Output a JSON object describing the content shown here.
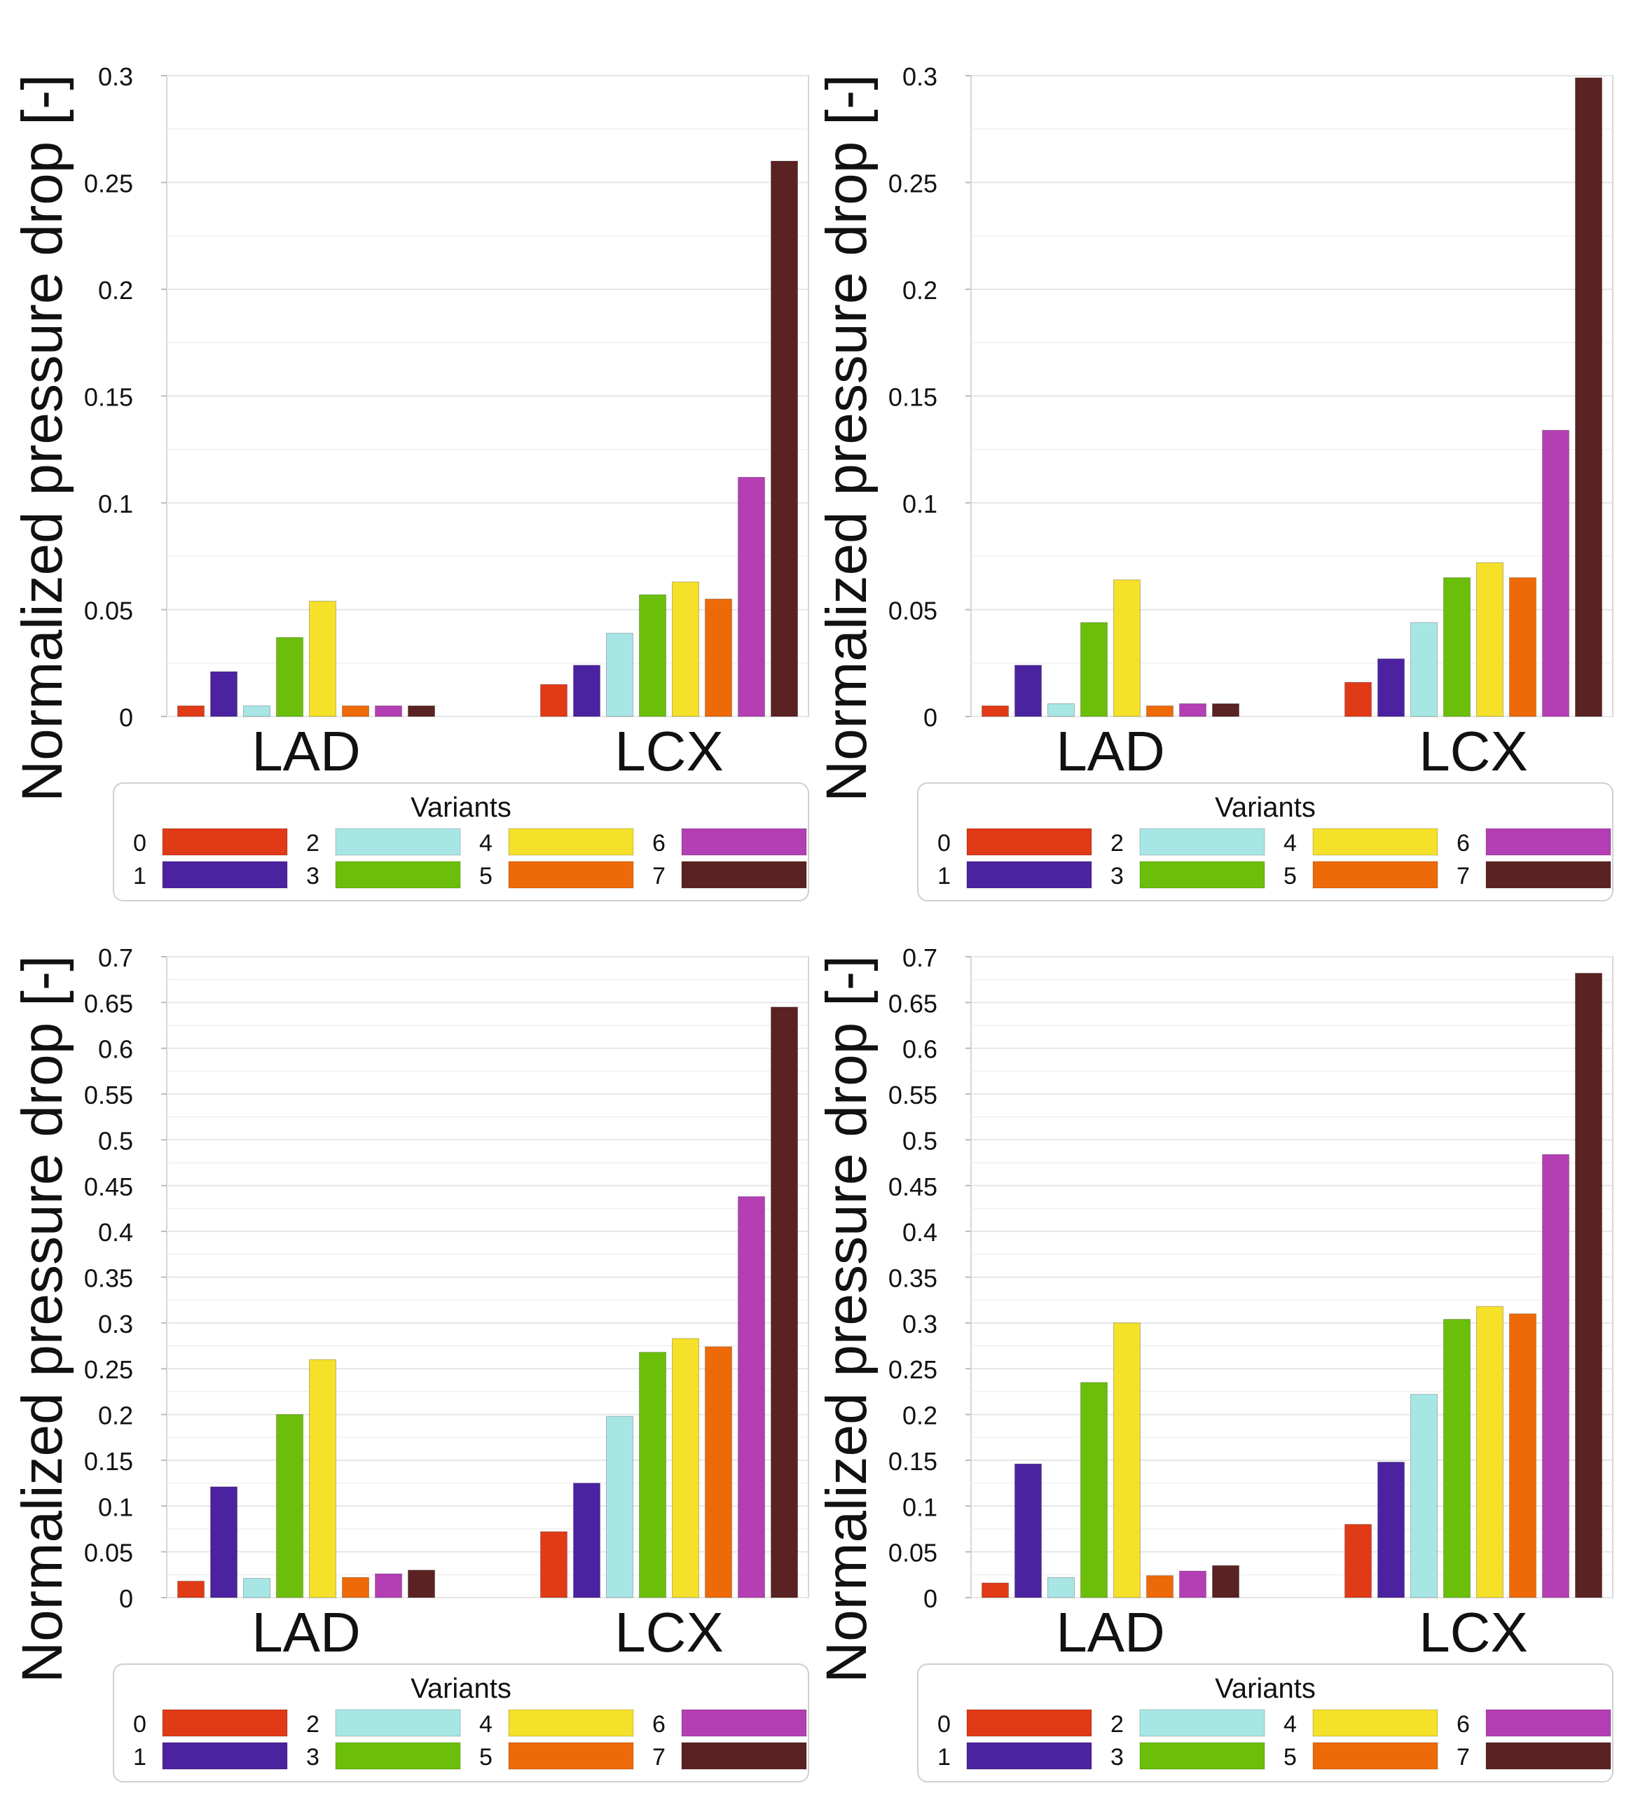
{
  "figure": {
    "title": ""
  },
  "variants": [
    {
      "label": "0",
      "color": "#e03a17"
    },
    {
      "label": "1",
      "color": "#4b22a0"
    },
    {
      "label": "2",
      "color": "#a8e6e6"
    },
    {
      "label": "3",
      "color": "#6bbf0a"
    },
    {
      "label": "4",
      "color": "#f5e02a"
    },
    {
      "label": "5",
      "color": "#ee6a08"
    },
    {
      "label": "6",
      "color": "#b43eb4"
    },
    {
      "label": "7",
      "color": "#5a2222"
    }
  ],
  "chart_data": [
    {
      "type": "bar",
      "title": "",
      "ylabel": "Normalized pressure drop [-]",
      "xlabel": "",
      "categories": [
        "LAD",
        "LCX"
      ],
      "ylim": [
        0,
        0.3
      ],
      "yticks": [
        "0",
        "0.05",
        "0.1",
        "0.15",
        "0.2",
        "0.25",
        "0.3"
      ],
      "legend_title": "Variants",
      "series": [
        {
          "name": "0",
          "values": [
            0.005,
            0.015
          ]
        },
        {
          "name": "1",
          "values": [
            0.021,
            0.024
          ]
        },
        {
          "name": "2",
          "values": [
            0.005,
            0.039
          ]
        },
        {
          "name": "3",
          "values": [
            0.037,
            0.057
          ]
        },
        {
          "name": "4",
          "values": [
            0.054,
            0.063
          ]
        },
        {
          "name": "5",
          "values": [
            0.005,
            0.055
          ]
        },
        {
          "name": "6",
          "values": [
            0.005,
            0.112
          ]
        },
        {
          "name": "7",
          "values": [
            0.005,
            0.26
          ]
        }
      ]
    },
    {
      "type": "bar",
      "title": "",
      "ylabel": "Normalized pressure drop [-]",
      "xlabel": "",
      "categories": [
        "LAD",
        "LCX"
      ],
      "ylim": [
        0,
        0.3
      ],
      "yticks": [
        "0",
        "0.05",
        "0.1",
        "0.15",
        "0.2",
        "0.25",
        "0.3"
      ],
      "legend_title": "Variants",
      "series": [
        {
          "name": "0",
          "values": [
            0.005,
            0.016
          ]
        },
        {
          "name": "1",
          "values": [
            0.024,
            0.027
          ]
        },
        {
          "name": "2",
          "values": [
            0.006,
            0.044
          ]
        },
        {
          "name": "3",
          "values": [
            0.044,
            0.065
          ]
        },
        {
          "name": "4",
          "values": [
            0.064,
            0.072
          ]
        },
        {
          "name": "5",
          "values": [
            0.005,
            0.065
          ]
        },
        {
          "name": "6",
          "values": [
            0.006,
            0.134
          ]
        },
        {
          "name": "7",
          "values": [
            0.006,
            0.299
          ]
        }
      ]
    },
    {
      "type": "bar",
      "title": "",
      "ylabel": "Normalized pressure drop [-]",
      "xlabel": "",
      "categories": [
        "LAD",
        "LCX"
      ],
      "ylim": [
        0,
        0.7
      ],
      "yticks": [
        "0",
        "0.05",
        "0.1",
        "0.15",
        "0.2",
        "0.25",
        "0.3",
        "0.35",
        "0.4",
        "0.45",
        "0.5",
        "0.55",
        "0.6",
        "0.65",
        "0.7"
      ],
      "legend_title": "Variants",
      "series": [
        {
          "name": "0",
          "values": [
            0.018,
            0.072
          ]
        },
        {
          "name": "1",
          "values": [
            0.121,
            0.125
          ]
        },
        {
          "name": "2",
          "values": [
            0.021,
            0.198
          ]
        },
        {
          "name": "3",
          "values": [
            0.2,
            0.268
          ]
        },
        {
          "name": "4",
          "values": [
            0.26,
            0.283
          ]
        },
        {
          "name": "5",
          "values": [
            0.022,
            0.274
          ]
        },
        {
          "name": "6",
          "values": [
            0.026,
            0.438
          ]
        },
        {
          "name": "7",
          "values": [
            0.03,
            0.645
          ]
        }
      ]
    },
    {
      "type": "bar",
      "title": "",
      "ylabel": "Normalized pressure drop [-]",
      "xlabel": "",
      "categories": [
        "LAD",
        "LCX"
      ],
      "ylim": [
        0,
        0.7
      ],
      "yticks": [
        "0",
        "0.05",
        "0.1",
        "0.15",
        "0.2",
        "0.25",
        "0.3",
        "0.35",
        "0.4",
        "0.45",
        "0.5",
        "0.55",
        "0.6",
        "0.65",
        "0.7"
      ],
      "legend_title": "Variants",
      "series": [
        {
          "name": "0",
          "values": [
            0.016,
            0.08
          ]
        },
        {
          "name": "1",
          "values": [
            0.146,
            0.148
          ]
        },
        {
          "name": "2",
          "values": [
            0.022,
            0.222
          ]
        },
        {
          "name": "3",
          "values": [
            0.235,
            0.304
          ]
        },
        {
          "name": "4",
          "values": [
            0.3,
            0.318
          ]
        },
        {
          "name": "5",
          "values": [
            0.024,
            0.31
          ]
        },
        {
          "name": "6",
          "values": [
            0.029,
            0.484
          ]
        },
        {
          "name": "7",
          "values": [
            0.035,
            0.682
          ]
        }
      ]
    }
  ]
}
